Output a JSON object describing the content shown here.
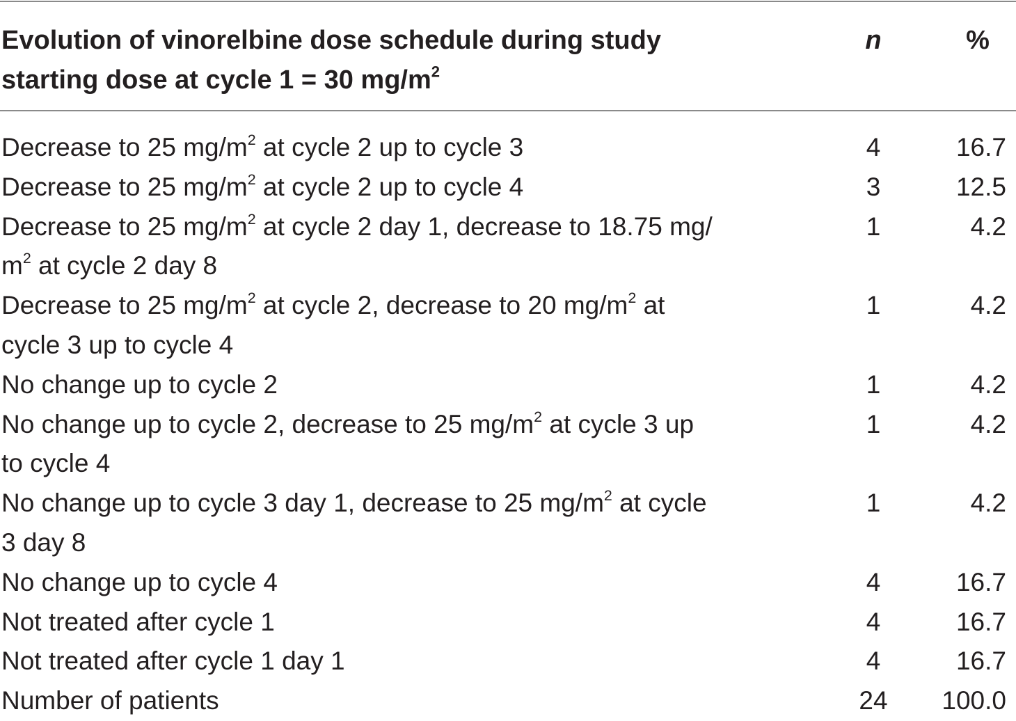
{
  "header": {
    "description_line1": "Evolution of vinorelbine dose schedule during study",
    "description_line2_prefix": "starting dose at cycle 1 = 30 mg/m",
    "superscript": "2",
    "n_label": "n",
    "pct_label": "%"
  },
  "rows": [
    {
      "lines": [
        [
          {
            "t": "Decrease to 25 mg/m"
          },
          {
            "s": "2"
          },
          {
            "t": " at cycle 2 up to cycle 3"
          }
        ]
      ],
      "n": "4",
      "pct": "16.7"
    },
    {
      "lines": [
        [
          {
            "t": "Decrease to 25 mg/m"
          },
          {
            "s": "2"
          },
          {
            "t": " at cycle 2 up to cycle 4"
          }
        ]
      ],
      "n": "3",
      "pct": "12.5"
    },
    {
      "lines": [
        [
          {
            "t": "Decrease to 25 mg/m"
          },
          {
            "s": "2"
          },
          {
            "t": " at cycle 2 day 1, decrease to 18.75 mg/"
          }
        ],
        [
          {
            "t": "m"
          },
          {
            "s": "2"
          },
          {
            "t": " at cycle 2 day 8"
          }
        ]
      ],
      "n": "1",
      "pct": "4.2"
    },
    {
      "lines": [
        [
          {
            "t": "Decrease to 25 mg/m"
          },
          {
            "s": "2"
          },
          {
            "t": " at cycle 2, decrease to 20 mg/m"
          },
          {
            "s": "2"
          },
          {
            "t": " at"
          }
        ],
        [
          {
            "t": "cycle 3 up to cycle 4"
          }
        ]
      ],
      "n": "1",
      "pct": "4.2"
    },
    {
      "lines": [
        [
          {
            "t": "No change up to cycle 2"
          }
        ]
      ],
      "n": "1",
      "pct": "4.2"
    },
    {
      "lines": [
        [
          {
            "t": "No change up to cycle 2, decrease to 25 mg/m"
          },
          {
            "s": "2"
          },
          {
            "t": " at cycle 3 up"
          }
        ],
        [
          {
            "t": "to cycle 4"
          }
        ]
      ],
      "n": "1",
      "pct": "4.2"
    },
    {
      "lines": [
        [
          {
            "t": "No change up to cycle 3 day 1, decrease to 25 mg/m"
          },
          {
            "s": "2"
          },
          {
            "t": " at cycle"
          }
        ],
        [
          {
            "t": "3 day 8"
          }
        ]
      ],
      "n": "1",
      "pct": "4.2"
    },
    {
      "lines": [
        [
          {
            "t": "No change up to cycle 4"
          }
        ]
      ],
      "n": "4",
      "pct": "16.7"
    },
    {
      "lines": [
        [
          {
            "t": "Not treated after cycle 1"
          }
        ]
      ],
      "n": "4",
      "pct": "16.7"
    },
    {
      "lines": [
        [
          {
            "t": "Not treated after cycle 1 day 1"
          }
        ]
      ],
      "n": "4",
      "pct": "16.7"
    },
    {
      "lines": [
        [
          {
            "t": "Number of patients"
          }
        ]
      ],
      "n": "24",
      "pct": "100.0"
    }
  ]
}
